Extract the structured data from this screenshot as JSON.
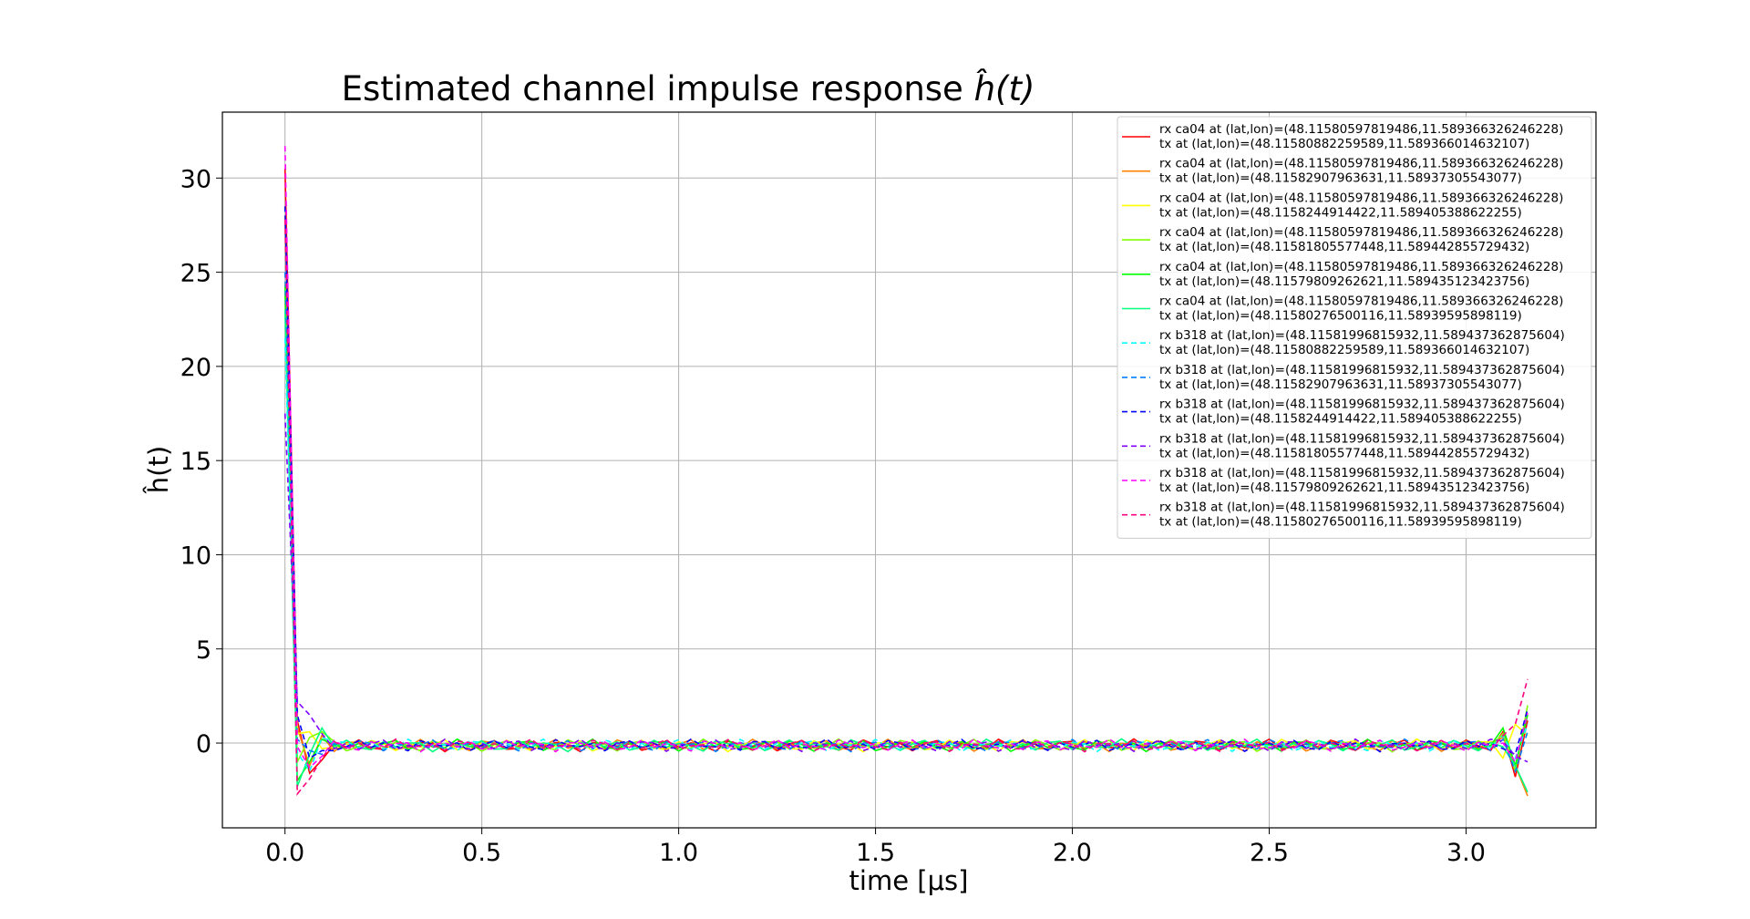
{
  "chart_data": {
    "type": "line",
    "title": "Estimated channel impulse response ĥ(t)",
    "title_parts": {
      "text": "Estimated channel impulse response ",
      "math": "ĥ(t)"
    },
    "xlabel": "time [μs]",
    "ylabel": "ĥ(t)",
    "xlim": [
      -0.159,
      3.33
    ],
    "ylim": [
      -4.5,
      33.5
    ],
    "xticks": [
      0.0,
      0.5,
      1.0,
      1.5,
      2.0,
      2.5,
      3.0
    ],
    "xtick_labels": [
      "0.0",
      "0.5",
      "1.0",
      "1.5",
      "2.0",
      "2.5",
      "3.0"
    ],
    "yticks": [
      0,
      5,
      10,
      15,
      20,
      25,
      30
    ],
    "ytick_labels": [
      "0",
      "5",
      "10",
      "15",
      "20",
      "25",
      "30"
    ],
    "grid": true,
    "legend_position": "top-right",
    "sample_step": 0.03125,
    "n_samples": 102,
    "series": [
      {
        "name": "rx ca04 at (lat,lon)=(48.11580597819486,11.589366326246228)\n tx at (lat,lon)=(48.11580882259589,11.589366014632107)",
        "color": "#ff0000",
        "dash": "solid",
        "peak": 30.5,
        "s1": 1.2,
        "s2": -1.6,
        "s3": -0.9,
        "tail": [
          0.6,
          -1.8,
          1.2
        ]
      },
      {
        "name": "rx ca04 at (lat,lon)=(48.11580597819486,11.589366326246228)\n tx at (lat,lon)=(48.11582907963631,11.58937305543077)",
        "color": "#ff8000",
        "dash": "solid",
        "peak": 28.0,
        "s1": 0.8,
        "s2": -1.2,
        "s3": 0.4,
        "tail": [
          0.3,
          -1.2,
          -2.8
        ]
      },
      {
        "name": "rx ca04 at (lat,lon)=(48.11580597819486,11.589366326246228)\n tx at (lat,lon)=(48.1158244914422,11.589405388622255)",
        "color": "#ffff00",
        "dash": "solid",
        "peak": 24.5,
        "s1": 0.5,
        "s2": 0.6,
        "s3": -0.3,
        "tail": [
          -0.8,
          1.0,
          0.4
        ]
      },
      {
        "name": "rx ca04 at (lat,lon)=(48.11580597819486,11.589366326246228)\n tx at (lat,lon)=(48.11581805577448,11.589442855729432)",
        "color": "#80ff00",
        "dash": "solid",
        "peak": 24.0,
        "s1": -1.0,
        "s2": 0.3,
        "s3": 0.6,
        "tail": [
          0.5,
          -1.5,
          2.0
        ]
      },
      {
        "name": "rx ca04 at (lat,lon)=(48.11580597819486,11.589366326246228)\n tx at (lat,lon)=(48.11579809262621,11.589435123423756)",
        "color": "#00ff00",
        "dash": "solid",
        "peak": 24.3,
        "s1": -2.0,
        "s2": -1.0,
        "s3": 0.2,
        "tail": [
          0.8,
          -1.2,
          1.5
        ]
      },
      {
        "name": "rx ca04 at (lat,lon)=(48.11580597819486,11.589366326246228)\n tx at (lat,lon)=(48.11580276500116,11.58939595898119)",
        "color": "#00ff80",
        "dash": "solid",
        "peak": 23.0,
        "s1": -2.3,
        "s2": -0.6,
        "s3": 0.8,
        "tail": [
          -0.2,
          -1.2,
          -2.6
        ]
      },
      {
        "name": "rx b318 at (lat,lon)=(48.11581996815932,11.589437362875604)\n tx at (lat,lon)=(48.11580882259589,11.589366014632107)",
        "color": "#00ffff",
        "dash": "dashed",
        "peak": 21.5,
        "s1": -0.5,
        "s2": -1.5,
        "s3": 0.3,
        "tail": [
          0.4,
          -0.8,
          1.0
        ]
      },
      {
        "name": "rx b318 at (lat,lon)=(48.11581996815932,11.589437362875604)\n tx at (lat,lon)=(48.11582907963631,11.58937305543077)",
        "color": "#0080ff",
        "dash": "dashed",
        "peak": 25.0,
        "s1": 0.2,
        "s2": -0.4,
        "s3": -0.6,
        "tail": [
          0.2,
          -1.5,
          0.6
        ]
      },
      {
        "name": "rx b318 at (lat,lon)=(48.11581996815932,11.589437362875604)\n tx at (lat,lon)=(48.1158244914422,11.589405388622255)",
        "color": "#0000ff",
        "dash": "dashed",
        "peak": 28.5,
        "s1": 1.5,
        "s2": -0.8,
        "s3": -0.4,
        "tail": [
          -0.3,
          -0.6,
          1.8
        ]
      },
      {
        "name": "rx b318 at (lat,lon)=(48.11581996815932,11.589437362875604)\n tx at (lat,lon)=(48.11581805577448,11.589442855729432)",
        "color": "#8000ff",
        "dash": "dashed",
        "peak": 17.5,
        "s1": 2.2,
        "s2": 1.5,
        "s3": 0.5,
        "tail": [
          0.1,
          -0.7,
          -1.0
        ]
      },
      {
        "name": "rx b318 at (lat,lon)=(48.11581996815932,11.589437362875604)\n tx at (lat,lon)=(48.11579809262621,11.589435123423756)",
        "color": "#ff00ff",
        "dash": "dashed",
        "peak": 31.7,
        "s1": -0.2,
        "s2": -1.3,
        "s3": -0.7,
        "tail": [
          0.0,
          -1.0,
          1.6
        ]
      },
      {
        "name": "rx b318 at (lat,lon)=(48.11581996815932,11.589437362875604)\n tx at (lat,lon)=(48.11580276500116,11.58939595898119)",
        "color": "#ff0080",
        "dash": "dashed",
        "peak": 27.8,
        "s1": -2.7,
        "s2": -1.9,
        "s3": -0.8,
        "tail": [
          0.4,
          1.0,
          3.4
        ]
      }
    ]
  }
}
